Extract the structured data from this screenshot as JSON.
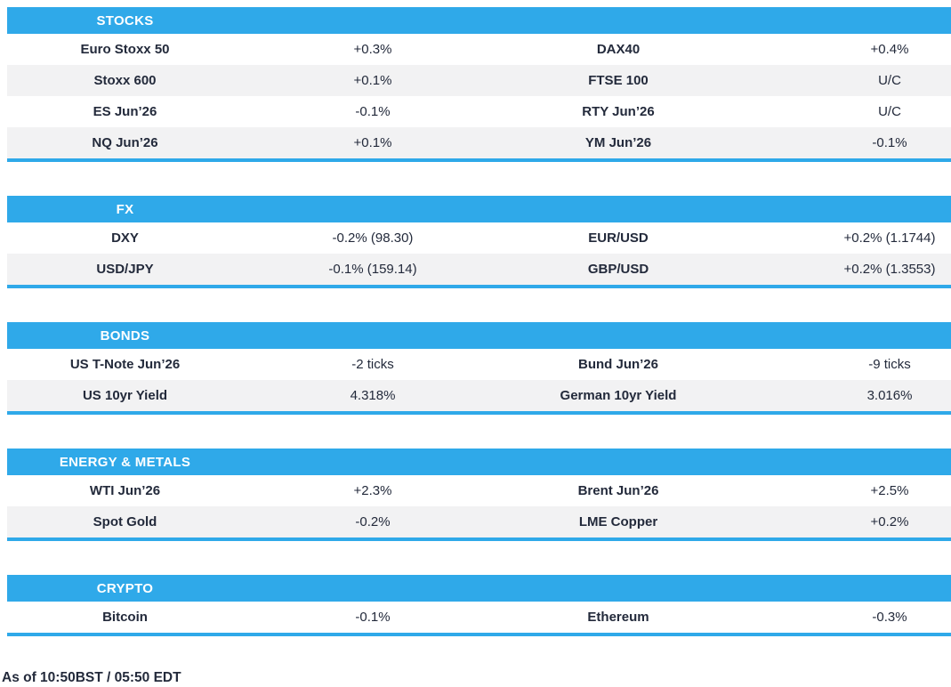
{
  "colors": {
    "accent_blue": "#2FA9E9",
    "row_stripe": "#F2F2F3",
    "text": "#232A3B"
  },
  "sections": [
    {
      "title": "STOCKS",
      "rows": [
        {
          "l1": "Euro Stoxx 50",
          "v1": "+0.3%",
          "l2": "DAX40",
          "v2": "+0.4%"
        },
        {
          "l1": "Stoxx 600",
          "v1": "+0.1%",
          "l2": "FTSE 100",
          "v2": "U/C"
        },
        {
          "l1": "ES Jun’26",
          "v1": "-0.1%",
          "l2": "RTY Jun’26",
          "v2": "U/C"
        },
        {
          "l1": "NQ Jun’26",
          "v1": "+0.1%",
          "l2": "YM Jun’26",
          "v2": "-0.1%"
        }
      ]
    },
    {
      "title": "FX",
      "rows": [
        {
          "l1": "DXY",
          "v1": "-0.2% (98.30)",
          "l2": "EUR/USD",
          "v2": "+0.2% (1.1744)"
        },
        {
          "l1": "USD/JPY",
          "v1": "-0.1% (159.14)",
          "l2": "GBP/USD",
          "v2": "+0.2% (1.3553)"
        }
      ]
    },
    {
      "title": "BONDS",
      "rows": [
        {
          "l1": "US T-Note Jun’26",
          "v1": "-2 ticks",
          "l2": "Bund Jun’26",
          "v2": "-9 ticks"
        },
        {
          "l1": "US 10yr Yield",
          "v1": "4.318%",
          "l2": "German 10yr Yield",
          "v2": "3.016%"
        }
      ]
    },
    {
      "title": "ENERGY & METALS",
      "rows": [
        {
          "l1": "WTI Jun’26",
          "v1": "+2.3%",
          "l2": "Brent Jun’26",
          "v2": "+2.5%"
        },
        {
          "l1": "Spot Gold",
          "v1": "-0.2%",
          "l2": "LME Copper",
          "v2": "+0.2%"
        }
      ]
    },
    {
      "title": "CRYPTO",
      "rows": [
        {
          "l1": "Bitcoin",
          "v1": "-0.1%",
          "l2": "Ethereum",
          "v2": "-0.3%"
        }
      ]
    }
  ],
  "footer": {
    "as_of": "As of 10:50BST / 05:50 EDT"
  }
}
